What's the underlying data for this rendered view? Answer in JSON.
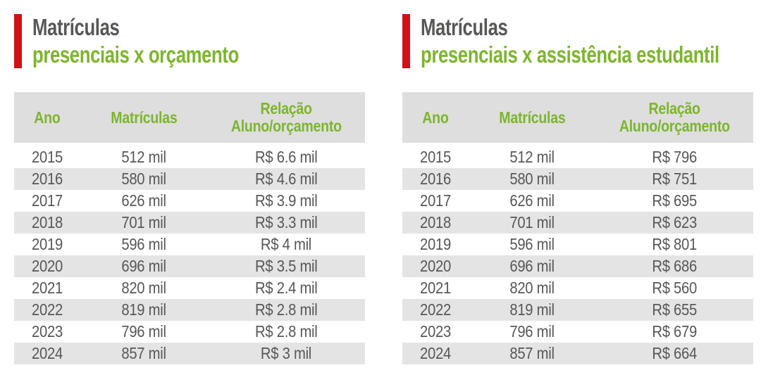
{
  "colors": {
    "accent_red": "#d01117",
    "accent_green": "#7db52c",
    "text_gray": "#575756",
    "header_bg": "#dedede",
    "row_alt_bg": "#e4e4e4",
    "page_bg": "#ffffff"
  },
  "panels": [
    {
      "title_line1": "Matrículas",
      "title_line2": "presenciais x orçamento",
      "header": {
        "col1": "Ano",
        "col2": "Matrículas",
        "col3_line1": "Relação",
        "col3_line2": "Aluno/orçamento"
      }
    },
    {
      "title_line1": "Matrículas",
      "title_line2": "presenciais x assistência estudantil",
      "header": {
        "col1": "Ano",
        "col2": "Matrículas",
        "col3_line1": "Relação",
        "col3_line2": "Aluno/orçamento"
      }
    }
  ],
  "chart_data": [
    {
      "type": "table",
      "title": "Matrículas presenciais x orçamento",
      "columns": [
        "Ano",
        "Matrículas",
        "Relação Aluno/orçamento"
      ],
      "rows": [
        [
          "2015",
          "512 mil",
          "R$ 6.6 mil"
        ],
        [
          "2016",
          "580 mil",
          "R$ 4.6 mil"
        ],
        [
          "2017",
          "626 mil",
          "R$ 3.9 mil"
        ],
        [
          "2018",
          "701 mil",
          "R$ 3.3 mil"
        ],
        [
          "2019",
          "596 mil",
          "R$ 4 mil"
        ],
        [
          "2020",
          "696 mil",
          "R$ 3.5 mil"
        ],
        [
          "2021",
          "820 mil",
          "R$ 2.4 mil"
        ],
        [
          "2022",
          "819 mil",
          "R$ 2.8 mil"
        ],
        [
          "2023",
          "796 mil",
          "R$ 2.8 mil"
        ],
        [
          "2024",
          "857 mil",
          "R$ 3 mil"
        ]
      ]
    },
    {
      "type": "table",
      "title": "Matrículas presenciais x assistência estudantil",
      "columns": [
        "Ano",
        "Matrículas",
        "Relação Aluno/orçamento"
      ],
      "rows": [
        [
          "2015",
          "512 mil",
          "R$ 796"
        ],
        [
          "2016",
          "580 mil",
          "R$ 751"
        ],
        [
          "2017",
          "626 mil",
          "R$ 695"
        ],
        [
          "2018",
          "701 mil",
          "R$ 623"
        ],
        [
          "2019",
          "596 mil",
          "R$ 801"
        ],
        [
          "2020",
          "696 mil",
          "R$ 686"
        ],
        [
          "2021",
          "820 mil",
          "R$ 560"
        ],
        [
          "2022",
          "819 mil",
          "R$ 655"
        ],
        [
          "2023",
          "796 mil",
          "R$ 679"
        ],
        [
          "2024",
          "857 mil",
          "R$ 664"
        ]
      ]
    }
  ]
}
